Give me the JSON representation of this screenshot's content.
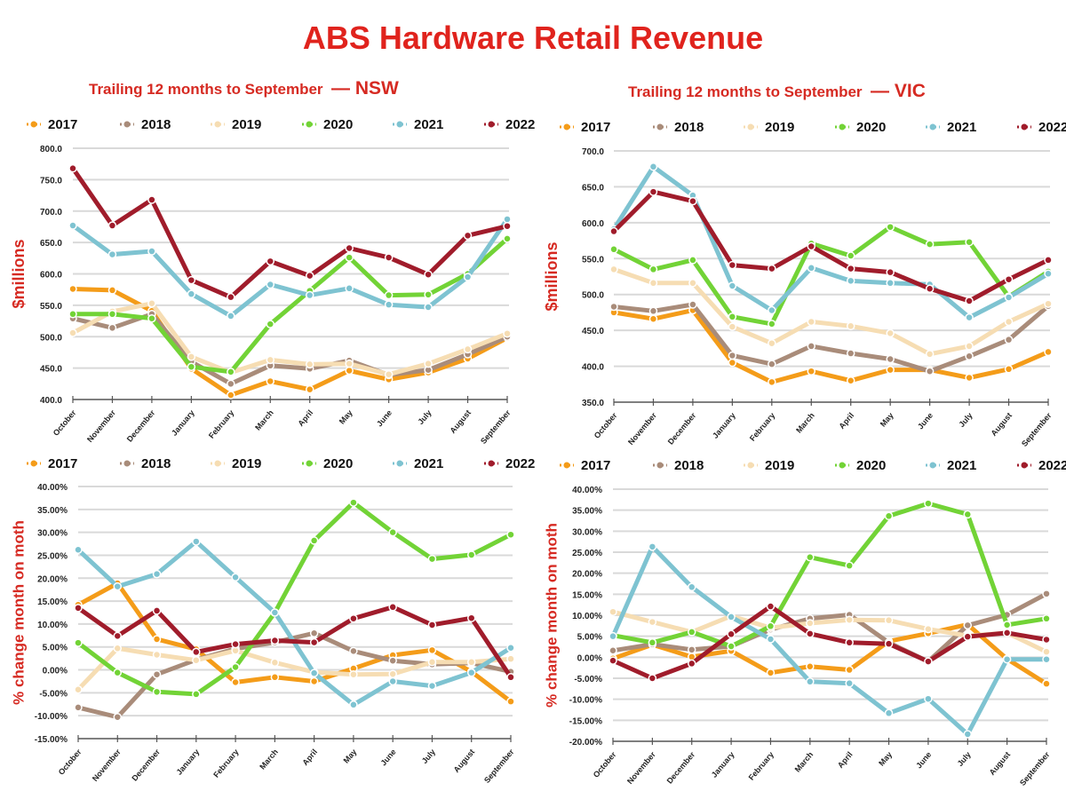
{
  "title": "ABS Hardware Retail Revenue",
  "colors": {
    "title": "#e0231d",
    "2017": "#f49c19",
    "2018": "#a98c7a",
    "2019": "#f6ddb3",
    "2020": "#72d336",
    "2021": "#7ec3d1",
    "2022": "#a01c2b"
  },
  "legend": [
    "2017",
    "2018",
    "2019",
    "2020",
    "2021",
    "2022"
  ],
  "chart_data": [
    {
      "id": "nsw-revenue",
      "type": "line",
      "title": "Trailing 12 months to September",
      "region": "— NSW",
      "xlabel": "",
      "ylabel": "$millions",
      "legend_position": "top",
      "grid": true,
      "categories": [
        "October",
        "November",
        "December",
        "January",
        "February",
        "March",
        "April",
        "May",
        "June",
        "July",
        "August",
        "September"
      ],
      "ylim": [
        400,
        800
      ],
      "yticks": [
        "400.0",
        "450.0",
        "500.0",
        "550.0",
        "600.0",
        "650.0",
        "700.0",
        "750.0",
        "800.0"
      ],
      "series": [
        {
          "name": "2017",
          "values": [
            576,
            574,
            541,
            449,
            407,
            429,
            416,
            446,
            432,
            443,
            465,
            498
          ]
        },
        {
          "name": "2018",
          "values": [
            529,
            514,
            536,
            460,
            425,
            454,
            449,
            462,
            439,
            447,
            472,
            500
          ]
        },
        {
          "name": "2019",
          "values": [
            506,
            540,
            553,
            468,
            443,
            463,
            456,
            457,
            440,
            457,
            480,
            505
          ]
        },
        {
          "name": "2020",
          "values": [
            536,
            536,
            529,
            452,
            444,
            520,
            573,
            626,
            566,
            567,
            600,
            656
          ]
        },
        {
          "name": "2021",
          "values": [
            677,
            631,
            636,
            568,
            533,
            583,
            566,
            577,
            551,
            547,
            595,
            687
          ]
        },
        {
          "name": "2022",
          "values": [
            768,
            677,
            718,
            590,
            563,
            620,
            597,
            641,
            626,
            599,
            661,
            676
          ]
        }
      ]
    },
    {
      "id": "vic-revenue",
      "type": "line",
      "title": "Trailing 12 months to September",
      "region": "— VIC",
      "xlabel": "",
      "ylabel": "$millions",
      "legend_position": "top",
      "grid": true,
      "categories": [
        "October",
        "November",
        "December",
        "January",
        "February",
        "March",
        "April",
        "May",
        "June",
        "July",
        "August",
        "September"
      ],
      "ylim": [
        350,
        700
      ],
      "yticks": [
        "350.0",
        "400.0",
        "450.0",
        "500.0",
        "550.0",
        "600.0",
        "650.0",
        "700.0"
      ],
      "series": [
        {
          "name": "2017",
          "values": [
            475,
            466,
            478,
            405,
            378,
            393,
            380,
            395,
            395,
            384,
            396,
            420
          ]
        },
        {
          "name": "2018",
          "values": [
            483,
            477,
            486,
            415,
            403,
            428,
            418,
            410,
            393,
            414,
            437,
            484
          ]
        },
        {
          "name": "2019",
          "values": [
            535,
            516,
            516,
            455,
            432,
            462,
            456,
            446,
            417,
            428,
            462,
            487
          ]
        },
        {
          "name": "2020",
          "values": [
            563,
            535,
            548,
            469,
            459,
            571,
            554,
            594,
            570,
            573,
            497,
            532
          ]
        },
        {
          "name": "2021",
          "values": [
            591,
            678,
            638,
            512,
            478,
            537,
            519,
            516,
            514,
            468,
            496,
            529
          ]
        },
        {
          "name": "2022",
          "values": [
            588,
            643,
            630,
            541,
            536,
            567,
            536,
            531,
            508,
            491,
            521,
            548
          ]
        }
      ]
    },
    {
      "id": "nsw-mom",
      "type": "line",
      "title": "",
      "xlabel": "",
      "ylabel": "% change month on moth",
      "legend_position": "top",
      "grid": true,
      "categories": [
        "October",
        "November",
        "December",
        "January",
        "February",
        "March",
        "April",
        "May",
        "June",
        "July",
        "August",
        "September"
      ],
      "ylim": [
        -15,
        40
      ],
      "yticks": [
        "-15.00%",
        "-10.00%",
        "-5.00%",
        "0.00%",
        "5.00%",
        "10.00%",
        "15.00%",
        "20.00%",
        "25.00%",
        "30.00%",
        "35.00%",
        "40.00%"
      ],
      "series": [
        {
          "name": "2017",
          "values": [
            14.2,
            18.9,
            6.7,
            4.5,
            -2.7,
            -1.6,
            -2.5,
            0.3,
            3.2,
            4.3,
            -0.4,
            -6.9
          ]
        },
        {
          "name": "2018",
          "values": [
            -8.2,
            -10.3,
            -1.0,
            2.2,
            4.6,
            6.0,
            8.0,
            4.1,
            2.0,
            1.2,
            1.5,
            -0.4
          ]
        },
        {
          "name": "2019",
          "values": [
            -4.3,
            4.7,
            3.3,
            2.1,
            4.2,
            1.6,
            -0.5,
            -1.0,
            -0.9,
            1.7,
            1.7,
            2.4
          ]
        },
        {
          "name": "2020",
          "values": [
            5.9,
            -0.6,
            -4.8,
            -5.3,
            0.6,
            12.5,
            28.2,
            36.5,
            30.0,
            24.2,
            25.1,
            29.5
          ]
        },
        {
          "name": "2021",
          "values": [
            26.2,
            18.2,
            20.9,
            28.0,
            20.2,
            12.5,
            -0.7,
            -7.6,
            -2.5,
            -3.5,
            -0.6,
            4.8
          ]
        },
        {
          "name": "2022",
          "values": [
            13.5,
            7.4,
            12.9,
            3.9,
            5.6,
            6.4,
            6.0,
            11.2,
            13.7,
            9.8,
            11.3,
            -1.6
          ]
        }
      ]
    },
    {
      "id": "vic-mom",
      "type": "line",
      "title": "",
      "xlabel": "",
      "ylabel": "% change month on moth",
      "legend_position": "top",
      "grid": true,
      "categories": [
        "October",
        "November",
        "December",
        "January",
        "February",
        "March",
        "April",
        "May",
        "June",
        "July",
        "August",
        "September"
      ],
      "ylim": [
        -20,
        40
      ],
      "yticks": [
        "-20.00%",
        "-15.00%",
        "-10.00%",
        "-5.00%",
        "0.00%",
        "5.00%",
        "10.00%",
        "15.00%",
        "20.00%",
        "25.00%",
        "30.00%",
        "35.00%",
        "40.00%"
      ],
      "series": [
        {
          "name": "2017",
          "values": [
            -0.3,
            3.0,
            0.1,
            1.5,
            -3.7,
            -2.2,
            -3.0,
            3.8,
            5.7,
            7.8,
            -0.4,
            -6.3
          ]
        },
        {
          "name": "2018",
          "values": [
            1.6,
            3.1,
            1.8,
            2.6,
            6.6,
            9.2,
            10.1,
            3.5,
            -1.0,
            7.6,
            10.1,
            15.1
          ]
        },
        {
          "name": "2019",
          "values": [
            10.8,
            8.4,
            6.0,
            9.8,
            7.0,
            8.1,
            8.9,
            8.8,
            6.7,
            5.1,
            5.8,
            1.3
          ]
        },
        {
          "name": "2020",
          "values": [
            5.2,
            3.5,
            6.0,
            2.6,
            7.4,
            23.8,
            21.8,
            33.6,
            36.6,
            34.0,
            7.7,
            9.2
          ]
        },
        {
          "name": "2021",
          "values": [
            5.0,
            26.3,
            16.7,
            9.6,
            4.3,
            -5.8,
            -6.2,
            -13.3,
            -9.9,
            -18.3,
            -0.5,
            -0.5
          ]
        },
        {
          "name": "2022",
          "values": [
            -0.8,
            -5.0,
            -1.5,
            5.5,
            12.1,
            5.6,
            3.5,
            3.2,
            -1.0,
            4.9,
            5.8,
            4.2
          ]
        }
      ]
    }
  ]
}
